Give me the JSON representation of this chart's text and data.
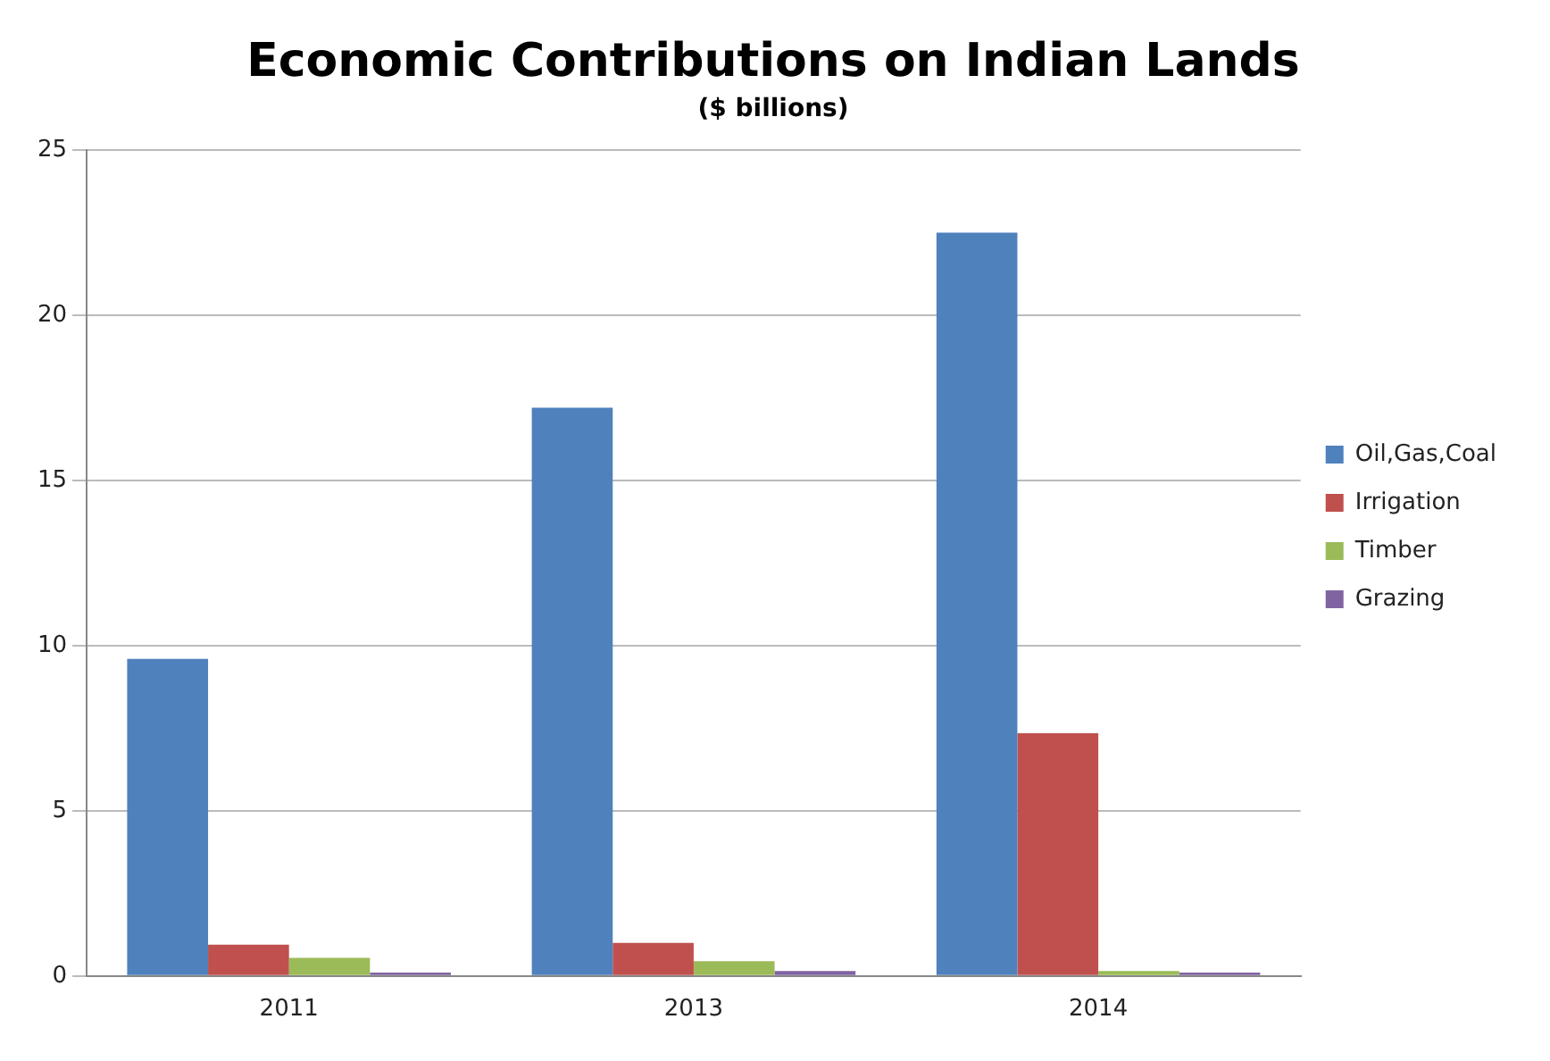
{
  "chart_data": {
    "type": "bar",
    "title": "Economic Contributions on Indian Lands",
    "subtitle": "($ billions)",
    "categories": [
      "2011",
      "2013",
      "2014"
    ],
    "series": [
      {
        "name": "Oil,Gas,Coal",
        "color": "#4f81bd",
        "values": [
          9.6,
          17.2,
          22.5
        ]
      },
      {
        "name": "Irrigation",
        "color": "#c0504d",
        "values": [
          0.95,
          1.0,
          7.35
        ]
      },
      {
        "name": "Timber",
        "color": "#9bbb59",
        "values": [
          0.55,
          0.45,
          0.15
        ]
      },
      {
        "name": "Grazing",
        "color": "#8064a2",
        "values": [
          0.1,
          0.15,
          0.1
        ]
      }
    ],
    "ylim": [
      0,
      25
    ],
    "yticks": [
      0,
      5,
      10,
      15,
      20,
      25
    ],
    "grid": "y",
    "legend": "right"
  }
}
